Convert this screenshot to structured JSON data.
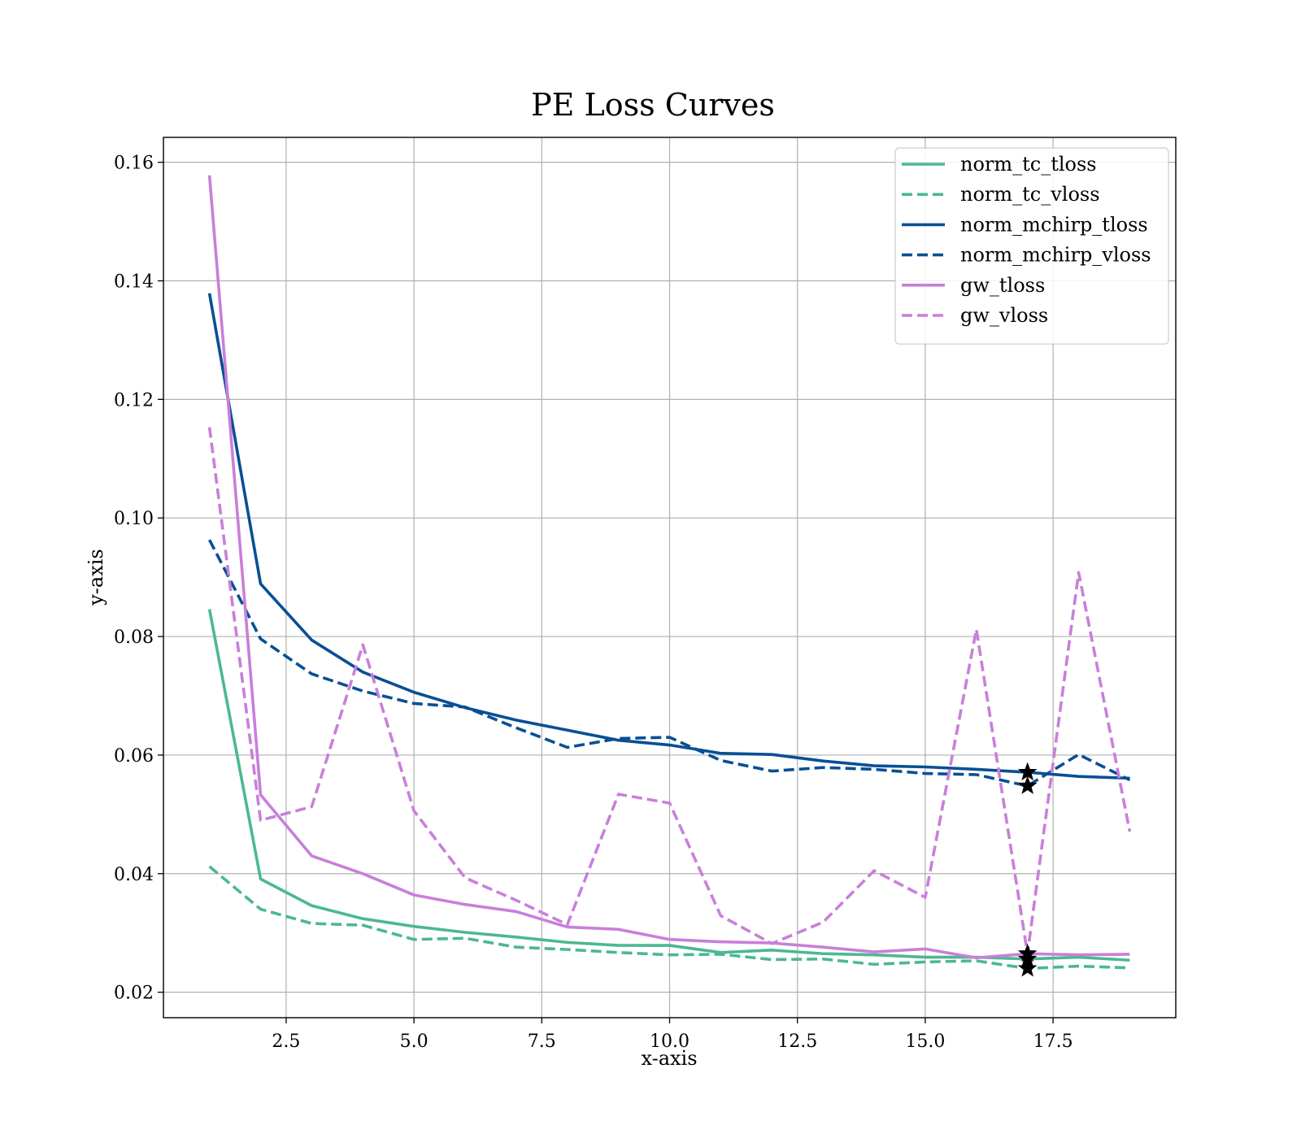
{
  "chart_data": {
    "type": "line",
    "title": "PE Loss Curves",
    "xlabel": "x-axis",
    "ylabel": "y-axis",
    "xlim": [
      0.1,
      19.9
    ],
    "ylim": [
      0.0157,
      0.1642
    ],
    "xticks": [
      2.5,
      5.0,
      7.5,
      10.0,
      12.5,
      15.0,
      17.5
    ],
    "xtick_labels": [
      "2.5",
      "5.0",
      "7.5",
      "10.0",
      "12.5",
      "15.0",
      "17.5"
    ],
    "yticks": [
      0.02,
      0.04,
      0.06,
      0.08,
      0.1,
      0.12,
      0.14,
      0.16
    ],
    "ytick_labels": [
      "0.02",
      "0.04",
      "0.06",
      "0.08",
      "0.10",
      "0.12",
      "0.14",
      "0.16"
    ],
    "grid": true,
    "legend_position": "top-right",
    "x": [
      1,
      2,
      3,
      4,
      5,
      6,
      7,
      8,
      9,
      10,
      11,
      12,
      13,
      14,
      15,
      16,
      17,
      18,
      19
    ],
    "series": [
      {
        "name": "norm_tc_tloss",
        "color": "#4bb893",
        "dash": "solid",
        "values": [
          0.0846,
          0.0391,
          0.0346,
          0.0324,
          0.0311,
          0.0301,
          0.0293,
          0.0284,
          0.0279,
          0.0279,
          0.0267,
          0.0271,
          0.0265,
          0.0263,
          0.0259,
          0.0259,
          0.0256,
          0.0259,
          0.0254
        ]
      },
      {
        "name": "norm_tc_vloss",
        "color": "#4bb893",
        "dash": "dashed",
        "values": [
          0.0412,
          0.034,
          0.0316,
          0.0313,
          0.0289,
          0.0291,
          0.0276,
          0.0272,
          0.0267,
          0.0263,
          0.0264,
          0.0255,
          0.0256,
          0.0247,
          0.0251,
          0.0253,
          0.024,
          0.0244,
          0.0241
        ]
      },
      {
        "name": "norm_mchirp_tloss",
        "color": "#084f95",
        "dash": "solid",
        "values": [
          0.1379,
          0.0889,
          0.0794,
          0.074,
          0.0706,
          0.068,
          0.0659,
          0.0642,
          0.0625,
          0.0617,
          0.0603,
          0.0601,
          0.059,
          0.0582,
          0.058,
          0.0576,
          0.0571,
          0.0564,
          0.0561
        ]
      },
      {
        "name": "norm_mchirp_vloss",
        "color": "#084f95",
        "dash": "dashed",
        "values": [
          0.0963,
          0.0796,
          0.0737,
          0.0708,
          0.0687,
          0.0681,
          0.0646,
          0.0613,
          0.0628,
          0.063,
          0.0591,
          0.0573,
          0.0579,
          0.0576,
          0.0569,
          0.0567,
          0.0548,
          0.0601,
          0.0558
        ]
      },
      {
        "name": "gw_tloss",
        "color": "#c97fdb",
        "dash": "solid",
        "values": [
          0.1578,
          0.0533,
          0.043,
          0.04,
          0.0364,
          0.0348,
          0.0336,
          0.031,
          0.0306,
          0.0289,
          0.0285,
          0.0283,
          0.0276,
          0.0268,
          0.0273,
          0.0258,
          0.0265,
          0.0263,
          0.0264
        ]
      },
      {
        "name": "gw_vloss",
        "color": "#c97fdb",
        "dash": "dashed",
        "values": [
          0.1153,
          0.049,
          0.0513,
          0.0786,
          0.0506,
          0.0393,
          0.0355,
          0.0314,
          0.0534,
          0.0519,
          0.0329,
          0.0282,
          0.0318,
          0.0405,
          0.036,
          0.0812,
          0.0265,
          0.0908,
          0.0471
        ]
      }
    ],
    "markers": [
      {
        "x": 17,
        "y": 0.0571,
        "symbol": "star"
      },
      {
        "x": 17,
        "y": 0.0548,
        "symbol": "star"
      },
      {
        "x": 17,
        "y": 0.0265,
        "symbol": "star"
      },
      {
        "x": 17,
        "y": 0.0256,
        "symbol": "star"
      },
      {
        "x": 17,
        "y": 0.024,
        "symbol": "star"
      }
    ]
  }
}
